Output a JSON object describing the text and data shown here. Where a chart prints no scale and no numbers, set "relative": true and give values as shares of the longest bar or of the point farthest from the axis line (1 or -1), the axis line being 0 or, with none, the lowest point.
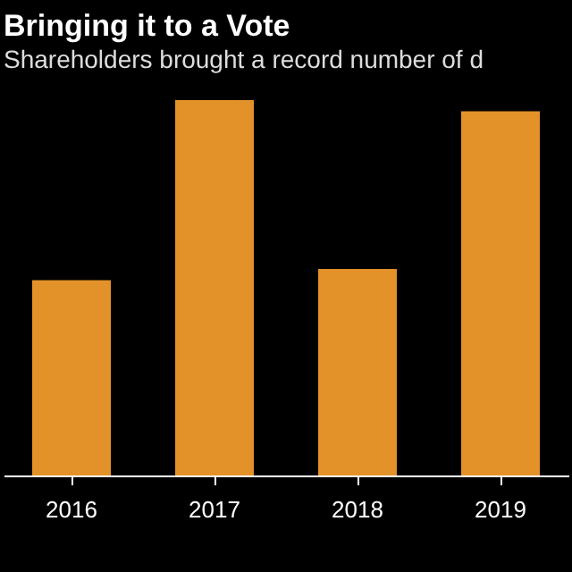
{
  "chart_data": {
    "type": "bar",
    "title": "Bringing it to a Vote",
    "subtitle": "Shareholders brought a record number of d",
    "categories": [
      "2016",
      "2017",
      "2018",
      "2019"
    ],
    "values": [
      0.52,
      1,
      0.55,
      0.97
    ],
    "color": "#e3922a",
    "relative": true
  }
}
